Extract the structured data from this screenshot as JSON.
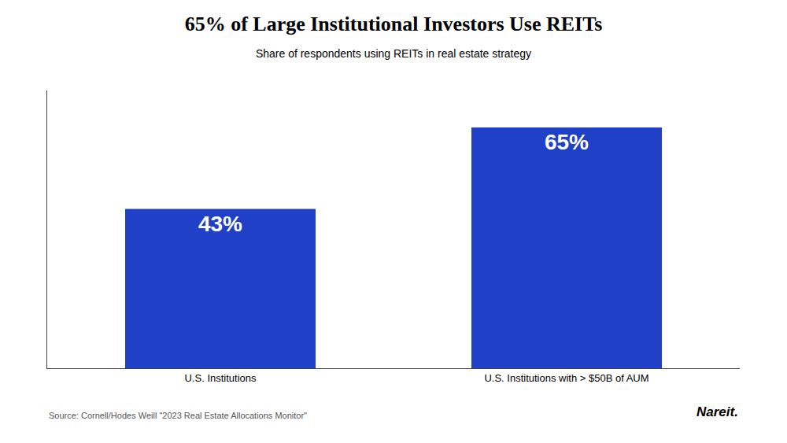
{
  "chart_data": {
    "type": "bar",
    "title": "65% of Large Institutional Investors Use REITs",
    "subtitle": "Share of respondents using REITs in real estate strategy",
    "categories": [
      "U.S. Institutions",
      "U.S. Institutions with > $50B of AUM"
    ],
    "values": [
      43,
      65
    ],
    "value_labels": [
      "43%",
      "65%"
    ],
    "data_labels": true,
    "color": "#2040C8",
    "ylim": [
      0,
      75
    ],
    "tick_labels": "x",
    "grid": false,
    "annotations": [
      "Source: Cornell/Hodes Weill \"2023 Real Estate Allocations Monitor\"",
      "Nareit."
    ]
  }
}
